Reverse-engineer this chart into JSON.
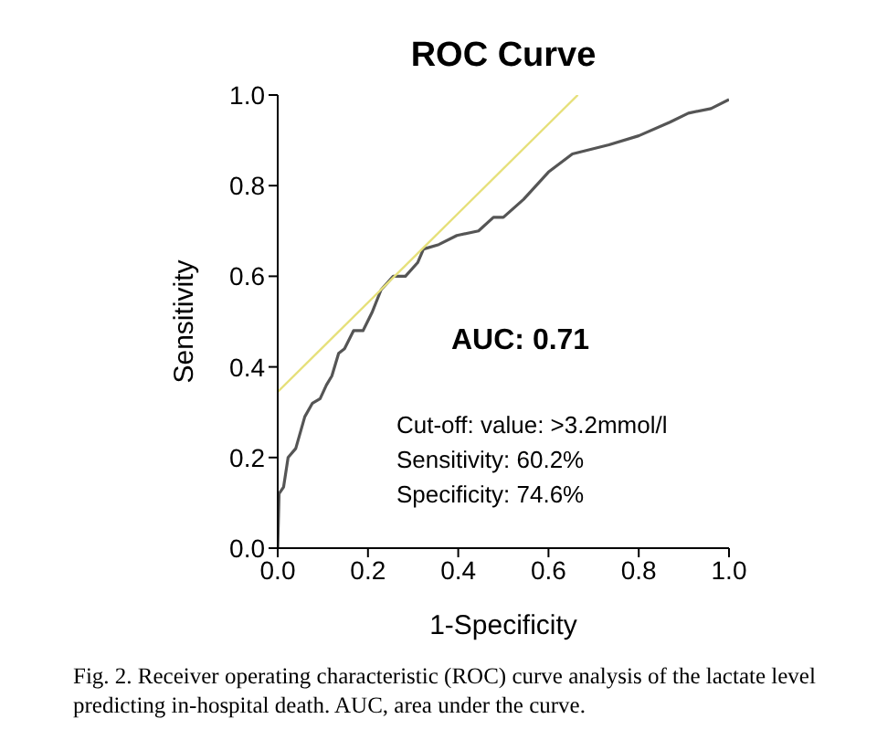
{
  "chart_data": {
    "type": "line",
    "title": "ROC Curve",
    "xlabel": "1-Specificity",
    "ylabel": "Sensitivity",
    "xlim": [
      0,
      1
    ],
    "ylim": [
      0,
      1
    ],
    "xticks": [
      {
        "value": 0,
        "label": "0.0"
      },
      0.2,
      0.4,
      0.6,
      0.8,
      {
        "value": 1,
        "label": "1.0"
      }
    ],
    "yticks": [
      {
        "value": 0,
        "label": "0.0"
      },
      0.2,
      0.4,
      0.6,
      0.8,
      {
        "value": 1,
        "label": "1.0"
      }
    ],
    "marker": "none",
    "line_style": "solid",
    "series": [
      {
        "color": "#555555",
        "x": [
          0,
          0.003,
          0.013,
          0.023,
          0.04,
          0.06,
          0.077,
          0.094,
          0.108,
          0.12,
          0.135,
          0.148,
          0.168,
          0.189,
          0.209,
          0.229,
          0.256,
          0.283,
          0.31,
          0.323,
          0.357,
          0.397,
          0.445,
          0.478,
          0.5,
          0.545,
          0.6,
          0.653,
          0.734,
          0.8,
          0.869,
          0.91,
          0.96,
          1.0
        ],
        "values": [
          0,
          0.12,
          0.135,
          0.2,
          0.22,
          0.29,
          0.32,
          0.33,
          0.36,
          0.38,
          0.43,
          0.44,
          0.48,
          0.48,
          0.52,
          0.57,
          0.6,
          0.6,
          0.63,
          0.66,
          0.67,
          0.69,
          0.7,
          0.73,
          0.73,
          0.77,
          0.83,
          0.87,
          0.89,
          0.91,
          0.94,
          0.96,
          0.97,
          0.99
        ]
      },
      {
        "type": "line",
        "color": "#e6e07a",
        "x": [
          0,
          0.665
        ],
        "values": [
          0.345,
          1.0
        ]
      }
    ],
    "annotations": [
      "AUC: 0.71",
      "Cut-off: value: >3.2mmol/l",
      "Sensitivity: 60.2%",
      "Specificity: 74.6%",
      "Fig. 2. Receiver operating characteristic (ROC) curve analysis of the lactate level predicting in-hospital death. AUC, area under the curve."
    ]
  }
}
